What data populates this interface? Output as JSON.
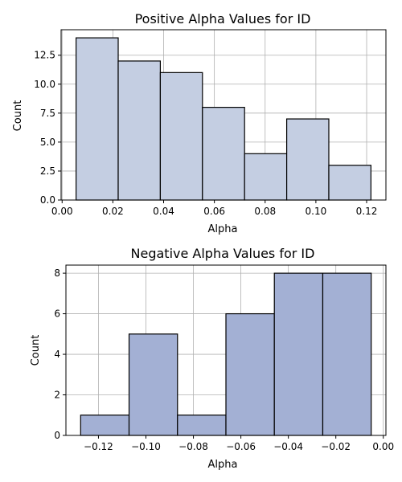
{
  "chart_data": [
    {
      "type": "bar",
      "title": "Positive Alpha Values for ID",
      "xlabel": "Alpha",
      "ylabel": "Count",
      "bins": [
        {
          "start": 0.0055,
          "end": 0.0221,
          "count": 14
        },
        {
          "start": 0.0221,
          "end": 0.0387,
          "count": 12
        },
        {
          "start": 0.0387,
          "end": 0.0553,
          "count": 11
        },
        {
          "start": 0.0553,
          "end": 0.0719,
          "count": 8
        },
        {
          "start": 0.0719,
          "end": 0.0885,
          "count": 4
        },
        {
          "start": 0.0885,
          "end": 0.1051,
          "count": 7
        },
        {
          "start": 0.1051,
          "end": 0.1217,
          "count": 3
        }
      ],
      "xlim": [
        -0.0004,
        0.1276
      ],
      "ylim": [
        0,
        14.7
      ],
      "xticks": [
        0.0,
        0.02,
        0.04,
        0.06,
        0.08,
        0.1,
        0.12
      ],
      "xtick_labels": [
        "0.00",
        "0.02",
        "0.04",
        "0.06",
        "0.08",
        "0.10",
        "0.12"
      ],
      "yticks": [
        0,
        2.5,
        5,
        7.5,
        10,
        12.5
      ],
      "ytick_labels": [
        "0.0",
        "2.5",
        "5.0",
        "7.5",
        "10.0",
        "12.5"
      ],
      "grid": true,
      "bar_color": "#c4cee2",
      "edge_color": "#000000"
    },
    {
      "type": "bar",
      "title": "Negative Alpha Values for ID",
      "xlabel": "Alpha",
      "ylabel": "Count",
      "bins": [
        {
          "start": -0.1275,
          "end": -0.1071,
          "count": 1
        },
        {
          "start": -0.1071,
          "end": -0.0867,
          "count": 5
        },
        {
          "start": -0.0867,
          "end": -0.0663,
          "count": 1
        },
        {
          "start": -0.0663,
          "end": -0.0459,
          "count": 6
        },
        {
          "start": -0.0459,
          "end": -0.0255,
          "count": 8
        },
        {
          "start": -0.0255,
          "end": -0.0051,
          "count": 8
        }
      ],
      "xlim": [
        -0.1337,
        0.0011
      ],
      "ylim": [
        0,
        8.4
      ],
      "xticks": [
        -0.12,
        -0.1,
        -0.08,
        -0.06,
        -0.04,
        -0.02,
        0.0
      ],
      "xtick_labels": [
        "−0.12",
        "−0.10",
        "−0.08",
        "−0.06",
        "−0.04",
        "−0.02",
        "0.00"
      ],
      "yticks": [
        0,
        2,
        4,
        6,
        8
      ],
      "ytick_labels": [
        "0",
        "2",
        "4",
        "6",
        "8"
      ],
      "grid": true,
      "bar_color": "#a3b0d4",
      "edge_color": "#000000"
    }
  ]
}
